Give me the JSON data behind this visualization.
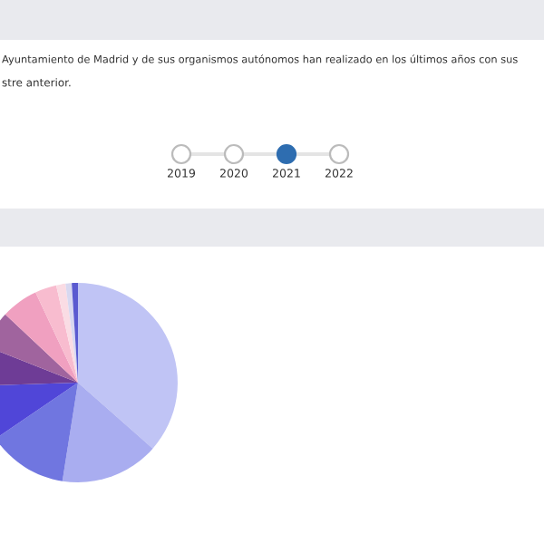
{
  "chart_data": {
    "type": "pie",
    "annotations": [
      "Ayuntamiento de Madrid y de sus organismos autónomos han realizado en los últimos años con sus",
      "stre anterior.",
      "2019",
      "2020",
      "2021",
      "2022"
    ],
    "categories": [
      null,
      null,
      null,
      null,
      null,
      null,
      null,
      null,
      null,
      null,
      null
    ],
    "values": [
      36.5,
      16,
      13,
      9,
      6.5,
      6,
      6,
      3.5,
      1.5,
      1,
      1
    ],
    "colors": [
      "#c0c4f5",
      "#a9adf0",
      "#7076e0",
      "#5046d8",
      "#6e3c96",
      "#a0649e",
      "#f0a0c0",
      "#f8bccf",
      "#fadce4",
      "#d8d8f0",
      "#5a5ad0"
    ]
  }
}
